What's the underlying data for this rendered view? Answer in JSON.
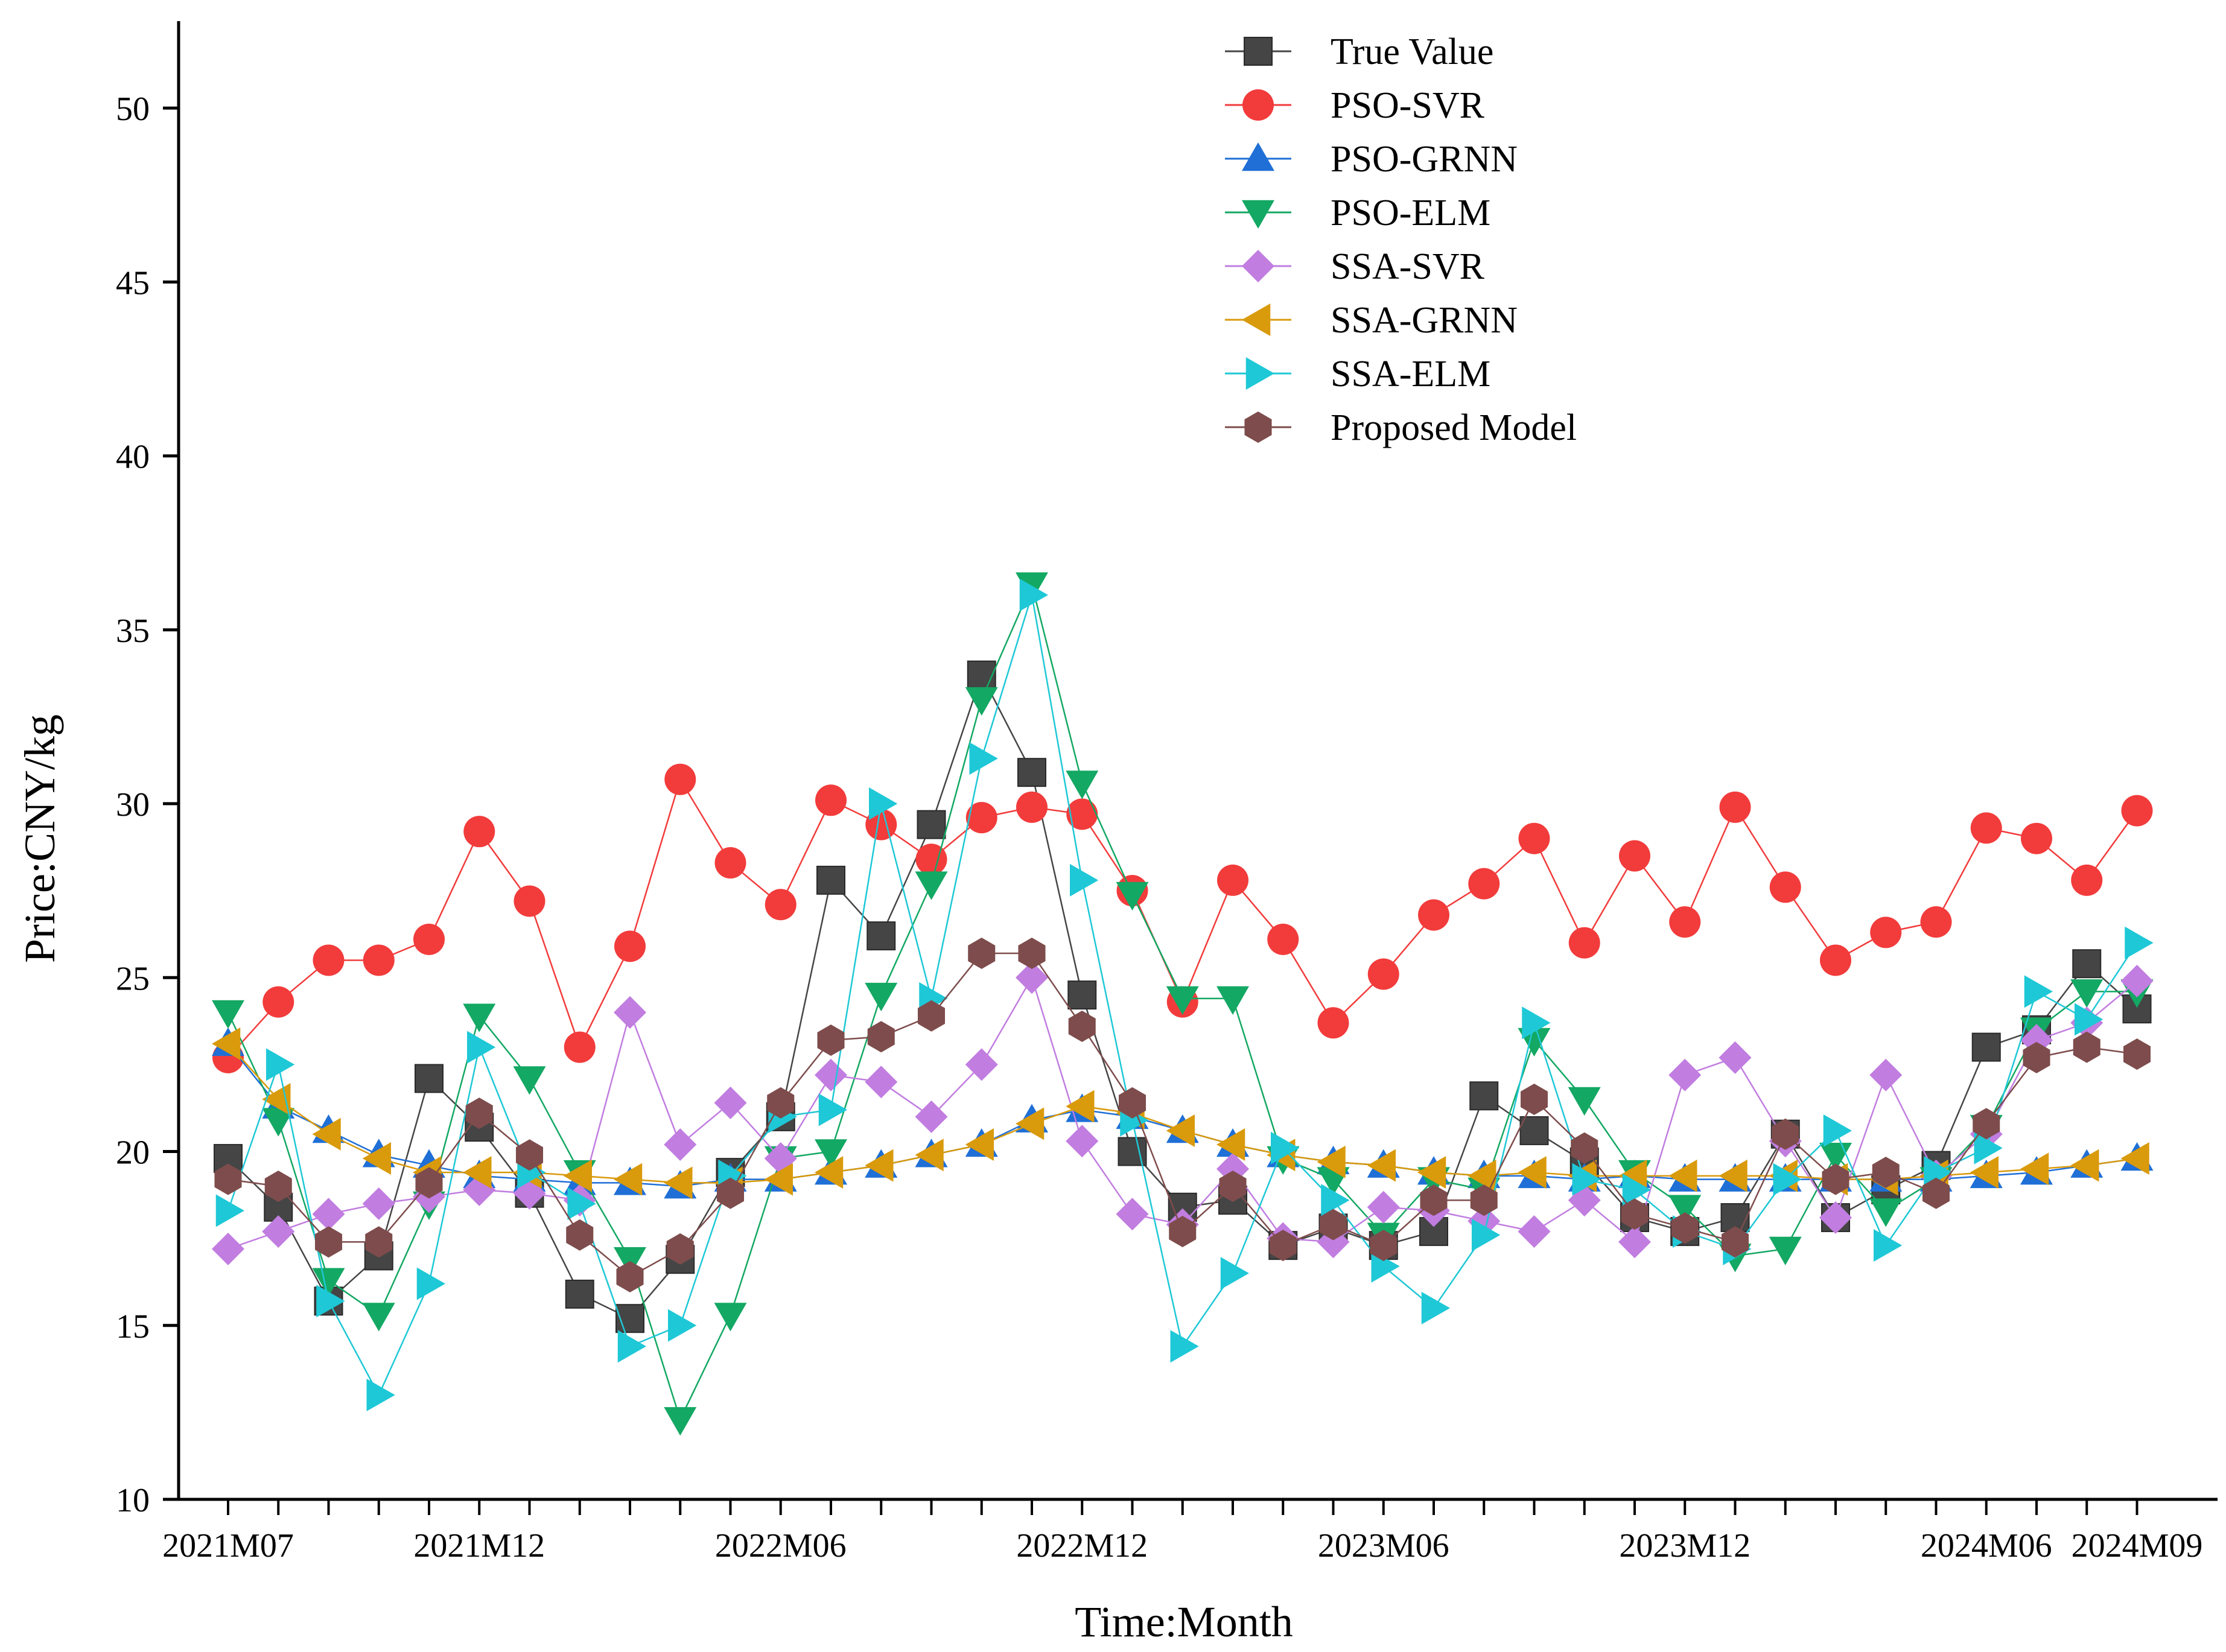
{
  "chart_data": {
    "type": "line",
    "title": "",
    "xlabel": "Time:Month",
    "ylabel": "Price:CNY/kg",
    "ylim": [
      10,
      52.5
    ],
    "yticks": [
      10,
      15,
      20,
      25,
      30,
      35,
      40,
      45,
      50
    ],
    "x_tick_labels": [
      {
        "index": 0,
        "label": "2021M07"
      },
      {
        "index": 5,
        "label": "2021M12"
      },
      {
        "index": 11,
        "label": "2022M06"
      },
      {
        "index": 17,
        "label": "2022M12"
      },
      {
        "index": 23,
        "label": "2023M06"
      },
      {
        "index": 29,
        "label": "2023M12"
      },
      {
        "index": 35,
        "label": "2024M06"
      },
      {
        "index": 38,
        "label": "2024M09"
      }
    ],
    "n_points": 39,
    "legend_position": "top-center",
    "series": [
      {
        "name": "True Value",
        "color": "#454545",
        "marker": "square",
        "values": [
          19.8,
          18.4,
          15.7,
          17.0,
          22.1,
          20.7,
          18.8,
          15.9,
          15.2,
          16.9,
          19.4,
          21.0,
          27.8,
          26.2,
          29.4,
          33.7,
          30.9,
          24.5,
          20.0,
          18.4,
          18.6,
          17.3,
          17.8,
          17.3,
          17.7,
          21.6,
          20.6,
          19.7,
          18.1,
          17.7,
          18.1,
          20.5,
          18.1,
          18.9,
          19.6,
          23.0,
          23.5,
          25.4,
          24.1
        ]
      },
      {
        "name": "PSO-SVR",
        "color": "#f23b3b",
        "marker": "circle",
        "values": [
          22.7,
          24.3,
          25.5,
          25.5,
          26.1,
          29.2,
          27.2,
          23.0,
          25.9,
          30.7,
          28.3,
          27.1,
          30.1,
          29.4,
          28.4,
          29.6,
          29.9,
          29.7,
          27.5,
          24.3,
          27.8,
          26.1,
          23.7,
          25.1,
          26.8,
          27.7,
          29.0,
          26.0,
          28.5,
          26.6,
          29.9,
          27.6,
          25.5,
          26.3,
          26.6,
          29.3,
          29.0,
          27.8,
          29.8
        ]
      },
      {
        "name": "PSO-GRNN",
        "color": "#1f6fd6",
        "marker": "triangle-up",
        "values": [
          23.1,
          21.3,
          20.6,
          19.9,
          19.6,
          19.3,
          19.2,
          19.1,
          19.1,
          19.0,
          19.2,
          19.2,
          19.4,
          19.6,
          19.9,
          20.2,
          20.9,
          21.2,
          21.0,
          20.6,
          20.2,
          19.9,
          19.7,
          19.6,
          19.4,
          19.3,
          19.3,
          19.2,
          19.3,
          19.2,
          19.2,
          19.2,
          19.2,
          19.2,
          19.2,
          19.3,
          19.4,
          19.6,
          19.8
        ]
      },
      {
        "name": "PSO-ELM",
        "color": "#13a863",
        "marker": "triangle-down",
        "values": [
          24.0,
          20.9,
          16.3,
          15.3,
          18.5,
          23.9,
          22.1,
          19.4,
          16.9,
          12.3,
          15.3,
          19.8,
          20.0,
          24.5,
          27.7,
          33.0,
          36.3,
          30.6,
          27.4,
          24.4,
          24.4,
          19.8,
          19.2,
          17.6,
          19.2,
          18.9,
          23.2,
          21.5,
          19.4,
          18.4,
          17.0,
          17.2,
          19.9,
          18.3,
          19.2,
          20.7,
          23.5,
          24.6,
          24.6
        ]
      },
      {
        "name": "SSA-SVR",
        "color": "#c17de0",
        "marker": "diamond",
        "values": [
          17.2,
          17.7,
          18.2,
          18.5,
          18.7,
          18.9,
          18.8,
          18.6,
          24.0,
          20.2,
          21.4,
          19.8,
          22.2,
          22.0,
          21.0,
          22.5,
          25.0,
          20.3,
          18.2,
          17.9,
          19.5,
          17.5,
          17.4,
          18.4,
          18.3,
          18.0,
          17.7,
          18.6,
          17.4,
          22.2,
          22.7,
          20.3,
          18.1,
          22.2,
          19.3,
          20.5,
          23.2,
          23.7,
          24.9
        ]
      },
      {
        "name": "SSA-GRNN",
        "color": "#d99a0c",
        "marker": "triangle-left",
        "values": [
          23.1,
          21.5,
          20.5,
          19.8,
          19.4,
          19.4,
          19.4,
          19.3,
          19.2,
          19.1,
          19.1,
          19.2,
          19.4,
          19.6,
          19.9,
          20.2,
          20.8,
          21.3,
          21.1,
          20.6,
          20.2,
          19.9,
          19.7,
          19.6,
          19.4,
          19.3,
          19.4,
          19.3,
          19.3,
          19.3,
          19.3,
          19.3,
          19.2,
          19.2,
          19.3,
          19.4,
          19.5,
          19.6,
          19.8
        ]
      },
      {
        "name": "SSA-ELM",
        "color": "#1ec8d6",
        "marker": "triangle-right",
        "values": [
          18.3,
          22.5,
          15.7,
          13.0,
          16.2,
          23.0,
          19.4,
          18.5,
          14.4,
          15.0,
          19.3,
          21.0,
          21.2,
          30.0,
          24.4,
          31.3,
          36.0,
          27.8,
          20.9,
          14.4,
          16.5,
          20.1,
          18.6,
          16.7,
          15.5,
          17.6,
          23.7,
          19.2,
          18.9,
          17.7,
          17.2,
          19.2,
          20.6,
          17.3,
          19.4,
          20.1,
          24.6,
          23.8,
          26.0
        ]
      },
      {
        "name": "Proposed Model",
        "color": "#7e4c4c",
        "marker": "hexagon",
        "values": [
          19.2,
          19.0,
          17.4,
          17.4,
          19.1,
          21.1,
          19.9,
          17.6,
          16.4,
          17.2,
          18.8,
          21.4,
          23.2,
          23.3,
          23.9,
          25.7,
          25.7,
          23.6,
          21.4,
          17.7,
          19.0,
          17.3,
          17.9,
          17.3,
          18.6,
          18.6,
          21.5,
          20.1,
          18.2,
          17.8,
          17.4,
          20.5,
          19.2,
          19.4,
          18.8,
          20.8,
          22.7,
          23.0,
          22.8
        ]
      }
    ]
  }
}
